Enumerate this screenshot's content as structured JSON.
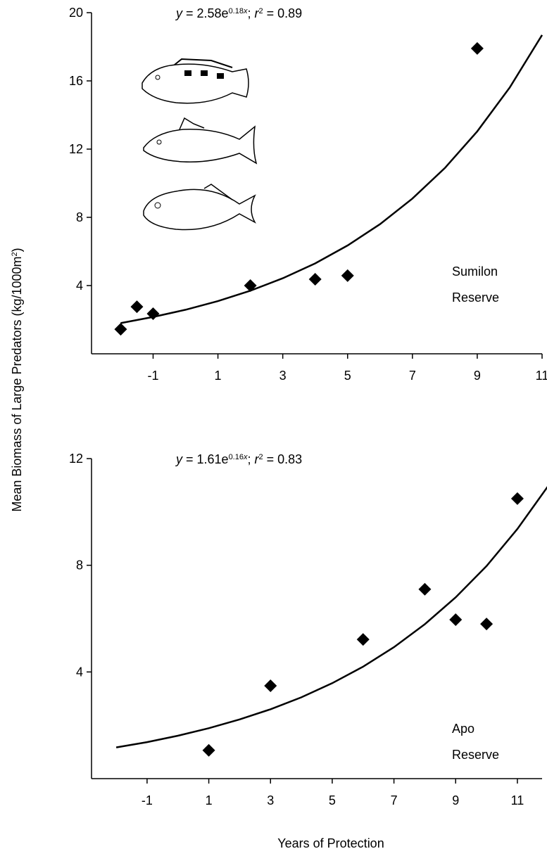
{
  "chart_data": [
    {
      "type": "scatter",
      "equation": [
        {
          "text": "y",
          "italic": true
        },
        {
          "text": " = 2.58e"
        },
        {
          "text": "0.18",
          "sup": true
        },
        {
          "text": "x",
          "sup": true,
          "italic": true
        },
        {
          "text": "; "
        },
        {
          "text": "r",
          "italic": true
        },
        {
          "text": "2",
          "sup": true
        },
        {
          "text": " = 0.89"
        }
      ],
      "label": [
        "Sumilon",
        "Reserve"
      ],
      "ylabel": [
        {
          "text": "Mean Biomass of Large Predators (kg/1000m"
        },
        {
          "text": "2",
          "sup": true
        },
        {
          "text": ")"
        }
      ],
      "x": [
        -2,
        -1.5,
        -1,
        2,
        4,
        5,
        9
      ],
      "values": [
        1.44,
        2.76,
        2.35,
        4.0,
        4.37,
        4.58,
        17.9
      ],
      "color": "#000000",
      "fit": {
        "x": [
          -2,
          -1,
          0,
          1,
          2,
          3,
          4,
          5,
          6,
          7,
          8,
          9,
          10,
          11
        ],
        "values": [
          1.8,
          2.16,
          2.58,
          3.09,
          3.7,
          4.43,
          5.3,
          6.35,
          7.6,
          9.1,
          10.89,
          13.04,
          15.61,
          18.69
        ]
      },
      "xlim": [
        -2.9,
        11
      ],
      "xticks": [
        -1,
        1,
        3,
        5,
        7,
        9,
        11
      ],
      "ylim": [
        0,
        20
      ],
      "yticks": [
        4,
        8,
        12,
        16,
        20
      ]
    },
    {
      "type": "scatter",
      "equation": [
        {
          "text": "y",
          "italic": true
        },
        {
          "text": " = 1.61e"
        },
        {
          "text": "0.16",
          "sup": true
        },
        {
          "text": "x",
          "sup": true,
          "italic": true
        },
        {
          "text": "; "
        },
        {
          "text": "r",
          "italic": true
        },
        {
          "text": "2",
          "sup": true
        },
        {
          "text": " = 0.83"
        }
      ],
      "label": [
        "Apo",
        "Reserve"
      ],
      "xlabel": "Years of Protection",
      "x": [
        1,
        3,
        6,
        8,
        9,
        10,
        11
      ],
      "values": [
        1.06,
        3.48,
        5.22,
        7.1,
        5.96,
        5.8,
        10.5
      ],
      "color": "#000000",
      "fit": {
        "x": [
          -2,
          -1,
          0,
          1,
          2,
          3,
          4,
          5,
          6,
          7,
          8,
          9,
          10,
          11,
          12
        ],
        "values": [
          1.17,
          1.37,
          1.61,
          1.89,
          2.22,
          2.6,
          3.05,
          3.58,
          4.2,
          4.93,
          5.79,
          6.8,
          7.97,
          9.36,
          10.98
        ]
      },
      "xlim": [
        -2.8,
        11.8
      ],
      "xticks": [
        -1,
        1,
        3,
        5,
        7,
        9,
        11
      ],
      "ylim": [
        0,
        12
      ],
      "yticks": [
        4,
        8,
        12
      ]
    }
  ]
}
